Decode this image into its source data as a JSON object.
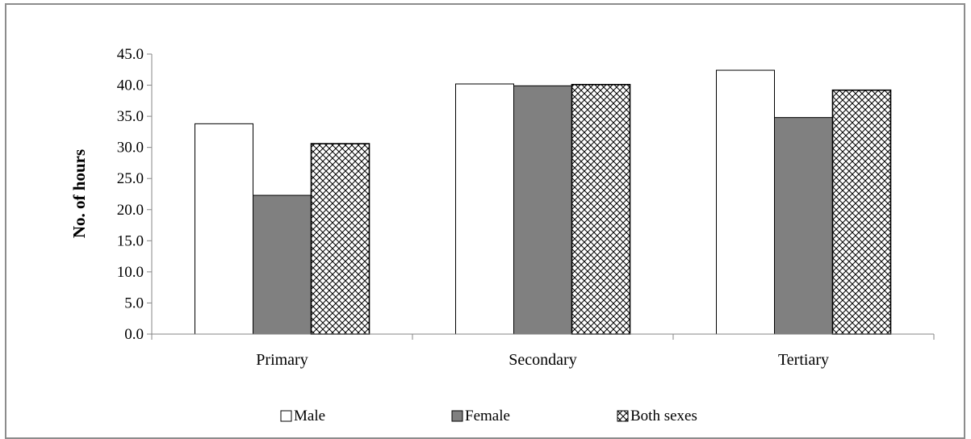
{
  "chart_data": {
    "type": "bar",
    "title": "",
    "xlabel": "",
    "ylabel": "No. of hours",
    "ylim": [
      0,
      45
    ],
    "ytick_step": 5,
    "ytick_labels": [
      "0.0",
      "5.0",
      "10.0",
      "15.0",
      "20.0",
      "25.0",
      "30.0",
      "35.0",
      "40.0",
      "45.0"
    ],
    "grid": false,
    "legend_position": "bottom",
    "categories": [
      "Primary",
      "Secondary",
      "Tertiary"
    ],
    "series": [
      {
        "name": "Male",
        "values": [
          33.8,
          40.2,
          42.4
        ],
        "fill": "#ffffff",
        "pattern": "solid"
      },
      {
        "name": "Female",
        "values": [
          22.3,
          39.9,
          34.8
        ],
        "fill": "#808080",
        "pattern": "solid"
      },
      {
        "name": "Both sexes",
        "values": [
          30.6,
          40.1,
          39.2
        ],
        "fill": "#ffffff",
        "pattern": "crosshatch"
      }
    ]
  }
}
